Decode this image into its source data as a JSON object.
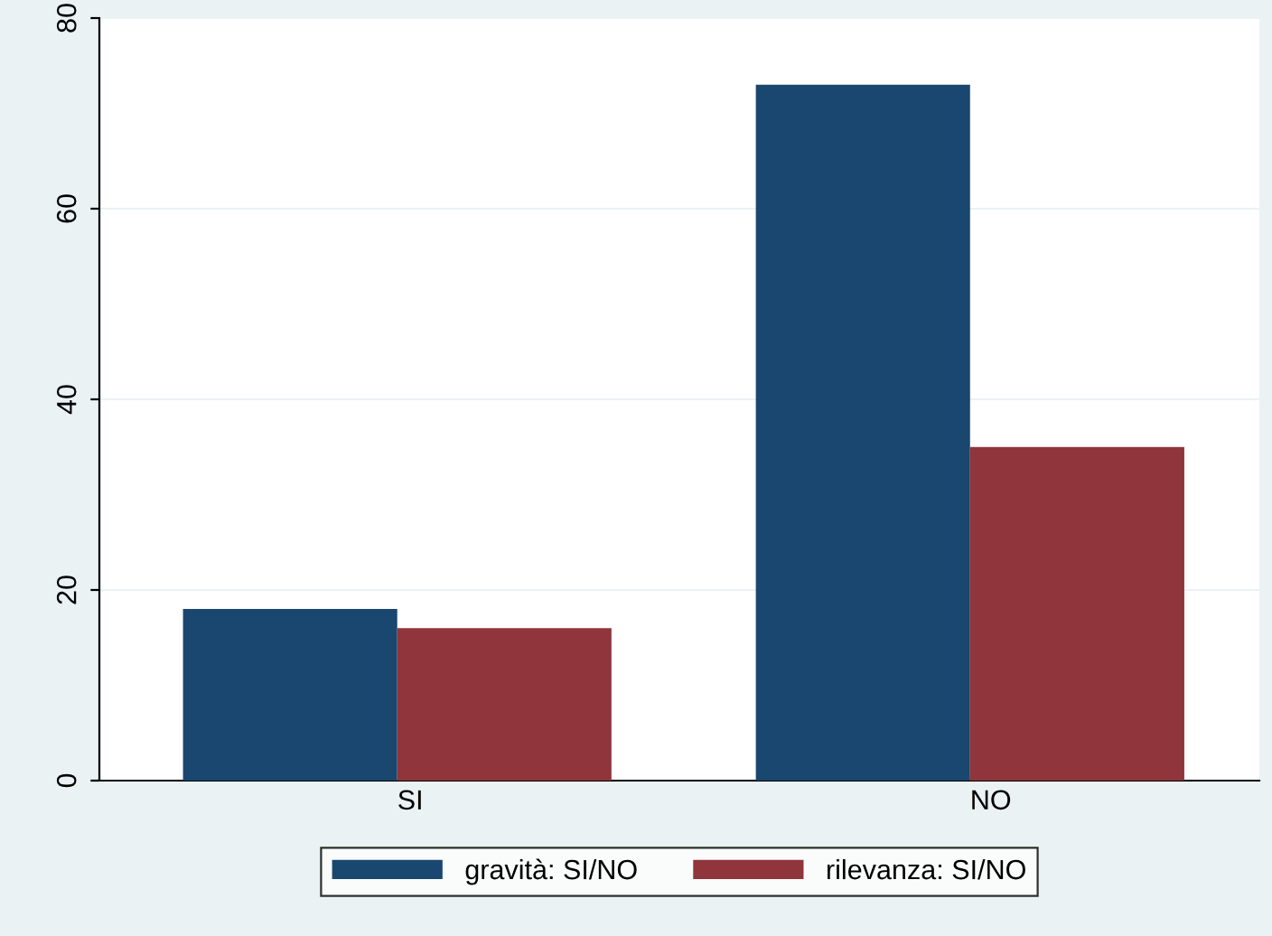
{
  "chart_data": {
    "type": "bar",
    "categories": [
      "SI",
      "NO"
    ],
    "series": [
      {
        "name": "gravità: SI/NO",
        "color": "#1a476f",
        "values": [
          18,
          73
        ]
      },
      {
        "name": "rilevanza: SI/NO",
        "color": "#90353b",
        "values": [
          16,
          35
        ]
      }
    ],
    "ylim": [
      0,
      80
    ],
    "yticks": [
      0,
      20,
      40,
      60,
      80
    ],
    "grid": "y",
    "legend": "bottom"
  }
}
